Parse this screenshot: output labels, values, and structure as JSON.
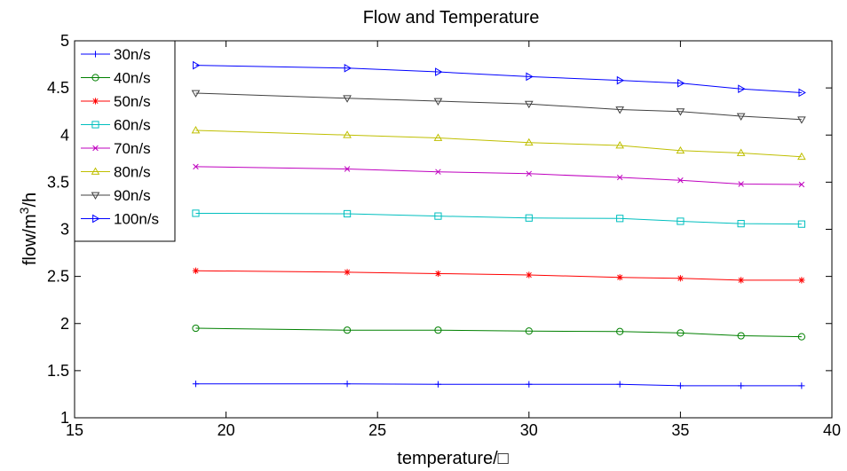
{
  "chart_data": {
    "type": "line",
    "title": "Flow and Temperature",
    "xlabel": "temperature/□",
    "ylabel_main": "flow/m",
    "ylabel_sup": "3",
    "ylabel_tail": "/h",
    "xlim": [
      15,
      40
    ],
    "ylim": [
      1,
      5
    ],
    "xticks": [
      15,
      20,
      25,
      30,
      35,
      40
    ],
    "yticks": [
      1,
      1.5,
      2,
      2.5,
      3,
      3.5,
      4,
      4.5,
      5
    ],
    "x": [
      19,
      24,
      27,
      30,
      33,
      35,
      37,
      39
    ],
    "grid": false,
    "legend_position": "top-left",
    "series": [
      {
        "name": "30n/s",
        "color": "#0000ff",
        "marker": "plus",
        "values": [
          1.36,
          1.36,
          1.355,
          1.355,
          1.355,
          1.34,
          1.34,
          1.34
        ]
      },
      {
        "name": "40n/s",
        "color": "#008000",
        "marker": "circle",
        "values": [
          1.95,
          1.93,
          1.93,
          1.92,
          1.915,
          1.9,
          1.87,
          1.86
        ]
      },
      {
        "name": "50n/s",
        "color": "#ff0000",
        "marker": "star",
        "values": [
          2.56,
          2.545,
          2.53,
          2.515,
          2.49,
          2.48,
          2.46,
          2.46
        ]
      },
      {
        "name": "60n/s",
        "color": "#00bfbf",
        "marker": "square",
        "values": [
          3.17,
          3.165,
          3.14,
          3.12,
          3.115,
          3.085,
          3.06,
          3.055
        ]
      },
      {
        "name": "70n/s",
        "color": "#bf00bf",
        "marker": "x",
        "values": [
          3.665,
          3.64,
          3.61,
          3.59,
          3.55,
          3.52,
          3.48,
          3.475
        ]
      },
      {
        "name": "80n/s",
        "color": "#bfbf00",
        "marker": "triangle-up",
        "values": [
          4.05,
          4.0,
          3.97,
          3.92,
          3.89,
          3.835,
          3.81,
          3.77
        ]
      },
      {
        "name": "90n/s",
        "color": "#404040",
        "marker": "triangle-down",
        "values": [
          4.445,
          4.39,
          4.36,
          4.33,
          4.27,
          4.25,
          4.2,
          4.165
        ]
      },
      {
        "name": "100n/s",
        "color": "#0000ff",
        "marker": "triangle-right",
        "values": [
          4.74,
          4.71,
          4.67,
          4.62,
          4.58,
          4.55,
          4.49,
          4.45
        ]
      }
    ]
  }
}
